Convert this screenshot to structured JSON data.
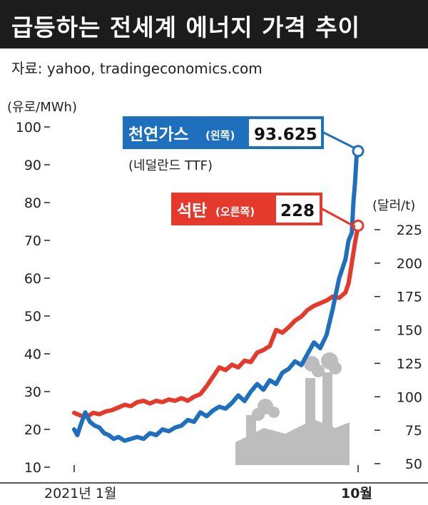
{
  "header": {
    "title": "급등하는 전세계 에너지 가격 추이"
  },
  "source": "자료: yahoo, tradingeconomics.com",
  "colors": {
    "gas": "#1f6fbf",
    "coal": "#e5392b",
    "header_bg": "#1c1c1c",
    "factory": "#bdbdbd"
  },
  "icons": {
    "factory": "factory-icon"
  },
  "chart_data": {
    "type": "line",
    "left_axis": {
      "unit_label": "(유로/MWh)",
      "min": 10,
      "max": 100,
      "ticks": [
        10,
        20,
        30,
        40,
        50,
        60,
        70,
        80,
        90,
        100
      ]
    },
    "right_axis": {
      "unit_label": "(달러/t)",
      "min": 50,
      "max": 225,
      "ticks": [
        50,
        75,
        100,
        125,
        150,
        175,
        200,
        225
      ]
    },
    "x_axis": {
      "start_label": "2021년 1월",
      "end_label": "10월",
      "start": 0,
      "end": 9
    },
    "series": [
      {
        "name": "천연가스",
        "axis": "left",
        "note": "(왼쪽)",
        "sub_label": "(네덜란드 TTF)",
        "end_value": "93.625",
        "x": [
          0,
          0.1,
          0.2,
          0.35,
          0.5,
          0.65,
          0.8,
          0.95,
          1.1,
          1.25,
          1.4,
          1.6,
          1.8,
          2.0,
          2.2,
          2.4,
          2.6,
          2.8,
          3.0,
          3.2,
          3.4,
          3.6,
          3.8,
          4.0,
          4.2,
          4.4,
          4.6,
          4.8,
          5.0,
          5.2,
          5.4,
          5.6,
          5.8,
          6.0,
          6.2,
          6.4,
          6.6,
          6.8,
          7.0,
          7.2,
          7.4,
          7.6,
          7.8,
          8.0,
          8.2,
          8.4,
          8.6,
          8.7,
          8.8,
          8.85,
          8.9,
          8.95,
          9.0
        ],
        "values": [
          20,
          18.5,
          21,
          24.5,
          22,
          21,
          20.5,
          19,
          18.5,
          17.5,
          18,
          17,
          17.5,
          18,
          17.5,
          19,
          18.5,
          20,
          19.5,
          20.5,
          21,
          22.5,
          22,
          24.5,
          23.5,
          25,
          26,
          25.5,
          27,
          29,
          27.5,
          30,
          32,
          30.5,
          33,
          32,
          35,
          36,
          38,
          37,
          40,
          43,
          41.5,
          45,
          52,
          60,
          65,
          70,
          72,
          80,
          85,
          92,
          93.625
        ]
      },
      {
        "name": "석탄",
        "axis": "right",
        "note": "(오른쪽)",
        "end_value": "228",
        "x": [
          0,
          0.2,
          0.4,
          0.6,
          0.8,
          1.0,
          1.2,
          1.4,
          1.6,
          1.8,
          2.0,
          2.2,
          2.4,
          2.6,
          2.8,
          3.0,
          3.2,
          3.4,
          3.6,
          3.8,
          4.0,
          4.2,
          4.4,
          4.6,
          4.8,
          5.0,
          5.2,
          5.4,
          5.6,
          5.8,
          6.0,
          6.2,
          6.4,
          6.6,
          6.8,
          7.0,
          7.2,
          7.4,
          7.6,
          7.8,
          8.0,
          8.2,
          8.4,
          8.6,
          8.7,
          8.8,
          8.9,
          9.0
        ],
        "values": [
          88,
          86,
          85,
          88,
          87,
          89,
          90,
          92,
          94,
          93,
          96,
          97,
          95,
          97,
          96,
          98,
          97,
          99,
          97,
          100,
          102,
          108,
          115,
          122,
          120,
          124,
          122,
          127,
          126,
          133,
          135,
          138,
          150,
          148,
          152,
          157,
          160,
          165,
          168,
          170,
          172,
          175,
          174,
          178,
          185,
          200,
          215,
          228
        ]
      }
    ]
  }
}
